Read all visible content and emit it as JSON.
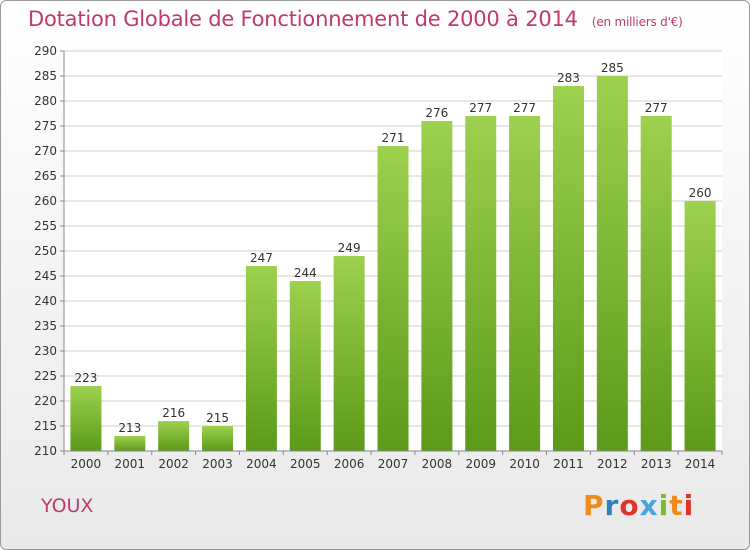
{
  "header": {
    "title": "Dotation Globale de Fonctionnement de 2000 à 2014",
    "unit": "(en milliers d'€)"
  },
  "footer": {
    "commune": "YOUX",
    "logo_text": "Proxiti",
    "logo_colors": [
      "#f08a1c",
      "#2f7fc1",
      "#e0342a",
      "#4aa3df",
      "#7ab929",
      "#f08a1c",
      "#e0342a"
    ]
  },
  "chart_data": {
    "type": "bar",
    "title": "Dotation Globale de Fonctionnement de 2000 à 2014",
    "subtitle": "(en milliers d'€)",
    "categories": [
      "2000",
      "2001",
      "2002",
      "2003",
      "2004",
      "2005",
      "2006",
      "2007",
      "2008",
      "2009",
      "2010",
      "2011",
      "2012",
      "2013",
      "2014"
    ],
    "values": [
      223,
      213,
      216,
      215,
      247,
      244,
      249,
      271,
      276,
      277,
      277,
      283,
      285,
      277,
      260
    ],
    "ylim": [
      210,
      290
    ],
    "yticks": [
      210,
      215,
      220,
      225,
      230,
      235,
      240,
      245,
      250,
      255,
      260,
      265,
      270,
      275,
      280,
      285,
      290
    ],
    "grid": true,
    "bar_color_top": "#9dd14f",
    "bar_color_bottom": "#5c9a19"
  }
}
